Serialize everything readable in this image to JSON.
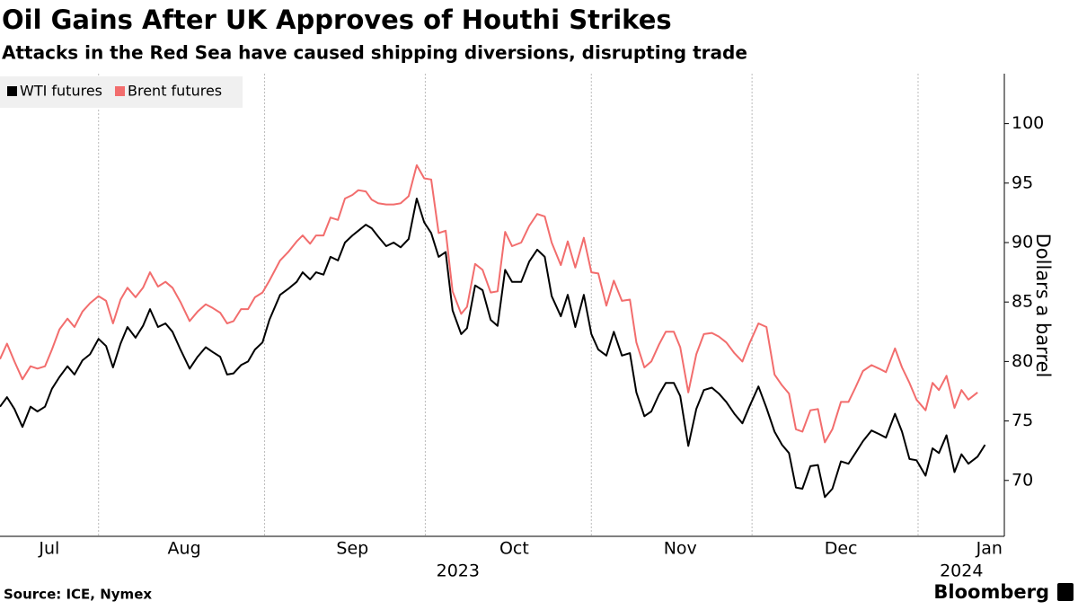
{
  "chart_data": {
    "type": "line",
    "title": "Oil Gains After UK Approves of Houthi Strikes",
    "subtitle": "Attacks in the Red Sea have caused shipping diversions, disrupting trade",
    "y_label": "Dollars a barrel",
    "source": "Source: ICE, Nymex",
    "brand": "Bloomberg",
    "x": [
      12.6,
      13.9,
      15.3,
      16.8,
      18.3,
      19.6,
      21.0,
      22.3,
      23.7,
      25.2,
      26.5,
      28.0,
      29.4,
      31.0,
      32.4,
      33.7,
      35.1,
      36.4,
      37.9,
      39.3,
      40.6,
      42.1,
      43.5,
      44.8,
      46.3,
      48.0,
      49.5,
      51.0,
      52.3,
      53.7,
      55.0,
      56.2,
      57.6,
      58.9,
      60.2,
      61.6,
      62.9,
      64.9,
      66.4,
      68.0,
      69.1,
      70.5,
      71.6,
      73.0,
      74.3,
      75.7,
      77.0,
      78.4,
      79.5,
      80.9,
      82.0,
      83.2,
      84.7,
      86.1,
      87.4,
      88.9,
      90.4,
      91.8,
      93.1,
      94.5,
      95.8,
      97.1,
      98.7,
      99.8,
      101.3,
      102.7,
      104.2,
      105.5,
      106.9,
      108.2,
      109.9,
      111.4,
      112.9,
      114.3,
      115.6,
      117.3,
      118.6,
      120.0,
      121.6,
      123.0,
      124.3,
      125.8,
      127.2,
      128.7,
      130.2,
      131.4,
      132.9,
      134.2,
      135.6,
      136.9,
      138.4,
      139.6,
      141.1,
      142.6,
      144.0,
      145.5,
      146.8,
      148.2,
      149.7,
      151.2,
      152.5,
      154.2,
      155.7,
      157.2,
      158.6,
      159.9,
      161.2,
      162.4,
      163.9,
      165.3,
      166.6,
      168.0,
      169.6,
      171.0,
      172.3,
      173.7,
      175.3,
      176.7,
      178.0,
      179.7,
      181.0,
      182.4,
      183.7,
      185.4,
      186.7,
      187.9,
      189.3,
      190.8,
      192.1,
      193.4,
      195.1,
      196.5
    ],
    "series": [
      {
        "name": "WTI futures",
        "color": "#000000",
        "values": [
          76.2,
          77.0,
          76.0,
          74.5,
          76.2,
          75.8,
          76.2,
          77.7,
          78.7,
          79.6,
          78.9,
          80.1,
          80.6,
          81.9,
          81.3,
          79.5,
          81.5,
          82.9,
          82.0,
          83.0,
          84.4,
          82.9,
          83.2,
          82.5,
          81.0,
          79.4,
          80.4,
          81.2,
          80.8,
          80.4,
          78.9,
          79.0,
          79.7,
          80.0,
          81.0,
          81.6,
          83.5,
          85.6,
          86.1,
          86.7,
          87.5,
          86.9,
          87.5,
          87.3,
          88.8,
          88.5,
          90.0,
          90.6,
          91.0,
          91.5,
          91.2,
          90.5,
          89.7,
          90.0,
          89.6,
          90.3,
          93.7,
          91.7,
          90.8,
          88.8,
          89.2,
          84.3,
          82.3,
          82.8,
          86.4,
          86.0,
          83.5,
          83.0,
          87.7,
          86.7,
          86.7,
          88.4,
          89.4,
          88.8,
          85.5,
          83.8,
          85.6,
          82.9,
          85.6,
          82.3,
          81.0,
          80.5,
          82.5,
          80.5,
          80.7,
          77.4,
          75.4,
          75.8,
          77.2,
          78.2,
          78.2,
          77.1,
          72.9,
          76.0,
          77.6,
          77.8,
          77.3,
          76.6,
          75.6,
          74.8,
          76.2,
          77.9,
          76.1,
          74.1,
          73.0,
          72.3,
          69.4,
          69.3,
          71.2,
          71.3,
          68.6,
          69.3,
          71.6,
          71.4,
          72.3,
          73.3,
          74.2,
          73.9,
          73.6,
          75.6,
          74.1,
          71.8,
          71.7,
          70.4,
          72.7,
          72.3,
          73.8,
          70.7,
          72.2,
          71.4,
          72.0,
          73.0
        ]
      },
      {
        "name": "Brent futures",
        "color": "#f26d6d",
        "values": [
          80.2,
          81.5,
          80.0,
          78.5,
          79.6,
          79.4,
          79.6,
          81.0,
          82.7,
          83.6,
          82.9,
          84.2,
          84.9,
          85.5,
          85.1,
          83.2,
          85.2,
          86.2,
          85.4,
          86.2,
          87.5,
          86.3,
          86.7,
          86.2,
          85.0,
          83.4,
          84.2,
          84.8,
          84.5,
          84.1,
          83.2,
          83.4,
          84.4,
          84.4,
          85.4,
          85.8,
          86.8,
          88.5,
          89.2,
          90.1,
          90.6,
          89.9,
          90.6,
          90.6,
          92.1,
          91.9,
          93.7,
          94.0,
          94.4,
          94.3,
          93.6,
          93.3,
          93.2,
          93.2,
          93.3,
          93.9,
          96.5,
          95.4,
          95.3,
          90.8,
          91.0,
          85.9,
          84.0,
          84.6,
          88.2,
          87.7,
          85.8,
          85.9,
          90.9,
          89.7,
          90.0,
          91.4,
          92.4,
          92.2,
          90.0,
          88.1,
          90.1,
          87.9,
          90.4,
          87.5,
          87.4,
          84.7,
          86.8,
          85.1,
          85.2,
          81.6,
          79.5,
          80.0,
          81.4,
          82.5,
          82.5,
          81.2,
          77.4,
          80.6,
          82.3,
          82.4,
          82.1,
          81.6,
          80.7,
          80.0,
          81.5,
          83.2,
          82.9,
          78.9,
          78.0,
          77.3,
          74.3,
          74.1,
          75.9,
          76.0,
          73.2,
          74.3,
          76.6,
          76.6,
          77.8,
          79.2,
          79.7,
          79.4,
          79.1,
          81.1,
          79.5,
          78.2,
          76.8,
          75.9,
          78.2,
          77.6,
          78.8,
          76.1,
          77.6,
          76.8,
          77.4,
          null
        ]
      }
    ],
    "xlim": [
      12.6,
      199.6
    ],
    "xticks": [
      {
        "value": 21.8,
        "label": "Jul"
      },
      {
        "value": 47.0,
        "label": "Aug"
      },
      {
        "value": 78.4,
        "label": "Sep"
      },
      {
        "value": 108.6,
        "label": "Oct"
      },
      {
        "value": 139.6,
        "label": "Nov"
      },
      {
        "value": 169.6,
        "label": "Dec"
      },
      {
        "value": 197.3,
        "label": "Jan"
      }
    ],
    "xgrid": [
      31,
      62,
      92,
      123,
      153,
      184
    ],
    "year_ticks": [
      {
        "value": 98.1,
        "label": "2023"
      },
      {
        "value": 192.1,
        "label": "2024"
      }
    ],
    "ylim": [
      65.3,
      104.2
    ],
    "yticks": [
      70,
      75,
      80,
      85,
      90,
      95,
      100
    ],
    "grid": true,
    "legend": "top-left"
  }
}
